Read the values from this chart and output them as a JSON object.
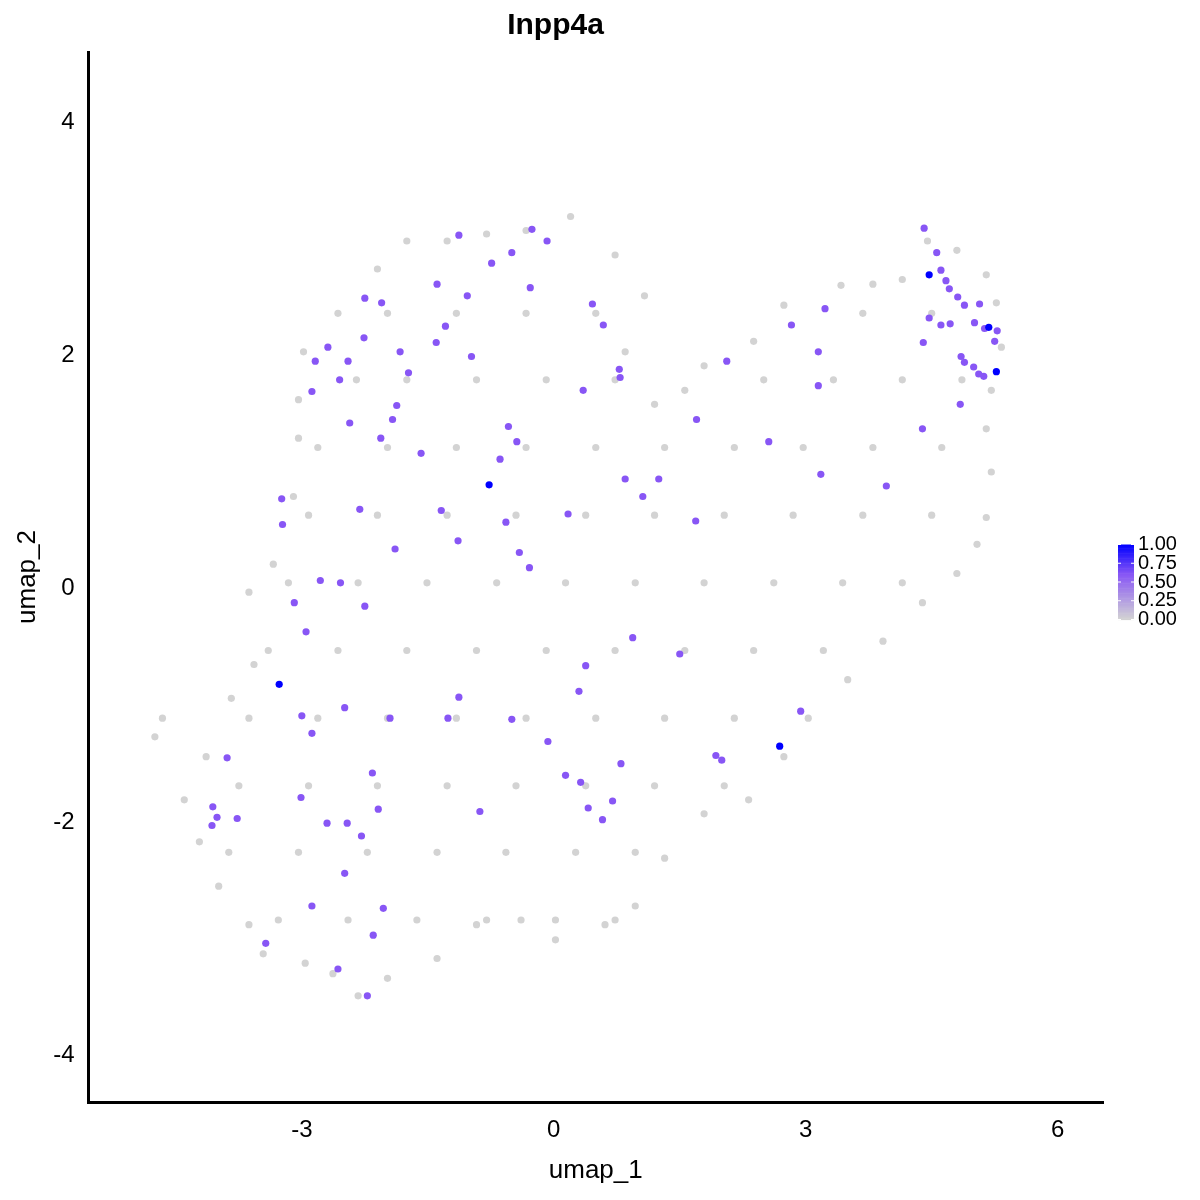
{
  "chart_data": {
    "type": "scatter",
    "title": "Inpp4a",
    "xlabel": "umap_1",
    "ylabel": "umap_2",
    "xlim": [
      -5.54,
      6.54
    ],
    "xticks": [
      -3,
      0,
      3,
      6
    ],
    "ylim": [
      -4.4,
      4.6
    ],
    "yticks": [
      -4,
      -2,
      0,
      2,
      4
    ],
    "grid": false,
    "marker": "circle",
    "clim": [
      0,
      1
    ],
    "cticks": [
      {
        "value": 0,
        "label": "0.00"
      },
      {
        "value": 0.25,
        "label": "0.25"
      },
      {
        "value": 0.5,
        "label": "0.50"
      },
      {
        "value": 0.75,
        "label": "0.75"
      },
      {
        "value": 1,
        "label": "1.00"
      }
    ],
    "series": [
      {
        "x": [
          -4.75,
          -4.66,
          -4.4,
          -4.22,
          -3.99,
          -3.63,
          -3.46,
          -2.96,
          -2.63,
          -2.33,
          -1.98,
          -1.39,
          -0.92,
          -0.39,
          0.02,
          0.61,
          0.97,
          1.32,
          1.79,
          2.32,
          2.74,
          3.03,
          3.5,
          3.92,
          4.39,
          4.8,
          5.04,
          5.15,
          5.21,
          5.15,
          5.21,
          5.33,
          5.27,
          5.15,
          4.8,
          4.45,
          4.15,
          3.8,
          3.42,
          2.74,
          2.38,
          1.79,
          1.56,
          1.2,
          0.85,
          1.08,
          0.73,
          0.2,
          -0.33,
          -0.8,
          -1.27,
          -1.75,
          -2.1,
          -2.57,
          -2.98,
          -3.04,
          -3.04,
          -3.1,
          -3.34,
          -3.63,
          -3.57,
          -3.84,
          -4.14,
          -1.98,
          -1.16,
          -0.33,
          0.5,
          3.68,
          4.5,
          -2.35,
          -1.75,
          -0.92,
          -0.09,
          0.73,
          2.5,
          3.33,
          4.15,
          4.86,
          -2.81,
          -1.98,
          -1.16,
          -0.33,
          0.5,
          1.32,
          2.15,
          2.97,
          3.8,
          4.62,
          -2.92,
          -2.1,
          -1.27,
          -0.45,
          0.38,
          1.2,
          2.03,
          2.85,
          3.68,
          4.5,
          -3.16,
          -2.33,
          -1.51,
          -0.68,
          0.14,
          0.97,
          1.79,
          2.62,
          3.44,
          4.15,
          -3.4,
          -2.57,
          -1.75,
          -0.92,
          -0.09,
          0.73,
          1.56,
          2.38,
          3.21,
          -3.63,
          -2.81,
          -1.98,
          -1.16,
          -0.33,
          0.5,
          1.32,
          2.15,
          -3.75,
          -2.92,
          -2.1,
          -1.27,
          -0.45,
          0.38,
          1.2,
          2.03,
          -3.87,
          -3.04,
          -2.22,
          -1.39,
          -0.57,
          0.26,
          0.97,
          -3.28,
          -2.45,
          -1.63,
          -0.8,
          0.02,
          0.73,
          -0.26,
          -0.08,
          -1.13,
          -0.74,
          -0.5,
          -1.39,
          -1.03,
          -0.28,
          -2.25,
          -2.05,
          -1.29,
          -2.26,
          -2.69,
          -2.84,
          -2.45,
          -1.83,
          -1.4,
          -0.98,
          -2.88,
          -2.55,
          -1.73,
          -1.87,
          -1.92,
          -2.43,
          -2.06,
          -1.58,
          -0.64,
          -0.44,
          -0.54,
          -3.24,
          -3.23,
          -2.31,
          -1.34,
          -0.57,
          -1.89,
          -1.14,
          -0.41,
          -0.29,
          -2.78,
          -2.54,
          -3.09,
          -2.95,
          -2.25,
          0.17,
          0.35,
          0.46,
          0.59,
          0.78,
          0.79,
          1.7,
          1.69,
          1.06,
          1.25,
          0.85,
          2.06,
          2.56,
          2.83,
          3.23,
          3.15,
          3.15,
          3.18,
          3.96,
          0.94,
          1.5,
          0.38,
          0.3,
          -0.5,
          -0.07,
          -1.26,
          -1.13,
          -1.95,
          -2.49,
          -2.88,
          -3.0,
          -3.01,
          -2.7,
          -2.46,
          -2.29,
          -2.16,
          -2.09,
          -2.49,
          -2.88,
          -3.43,
          -2.57,
          -2.22,
          -2.15,
          -2.03,
          -4.07,
          -4.01,
          -4.06,
          -3.89,
          -3.77,
          0.14,
          0.32,
          0.41,
          0.58,
          0.7,
          0.8,
          -0.88,
          1.93,
          2.0,
          2.94,
          4.41,
          4.56,
          4.61,
          4.67,
          4.71,
          4.81,
          4.89,
          4.47,
          4.61,
          4.72,
          5.07,
          5.01,
          4.85,
          4.89,
          5.25,
          5.28,
          5.13,
          5.0,
          5.06,
          5.12,
          4.4,
          4.39,
          4.84,
          4.47,
          5.18,
          5.27,
          -0.77,
          -3.27,
          2.69
        ],
        "values": [
          -1.27,
          -1.11,
          -1.81,
          -2.17,
          -2.55,
          -2.88,
          -3.13,
          -3.21,
          -3.3,
          -3.49,
          -3.34,
          -3.17,
          -2.88,
          -2.84,
          -3.01,
          -2.88,
          -2.72,
          -2.31,
          -1.93,
          -1.81,
          -1.44,
          -1.11,
          -0.78,
          -0.45,
          -0.12,
          0.13,
          0.38,
          0.61,
          1.0,
          1.37,
          1.7,
          2.07,
          2.45,
          2.69,
          2.9,
          2.98,
          2.65,
          2.61,
          2.6,
          2.43,
          2.12,
          1.91,
          1.7,
          1.58,
          2.03,
          2.51,
          2.86,
          3.19,
          3.07,
          3.04,
          2.98,
          2.98,
          2.74,
          2.36,
          2.03,
          1.62,
          1.29,
          0.79,
          0.21,
          -0.03,
          -0.65,
          -0.94,
          -1.44,
          2.36,
          2.36,
          2.36,
          2.36,
          2.36,
          2.36,
          1.79,
          1.79,
          1.79,
          1.79,
          1.79,
          1.79,
          1.79,
          1.79,
          1.79,
          1.21,
          1.21,
          1.21,
          1.21,
          1.21,
          1.21,
          1.21,
          1.21,
          1.21,
          1.21,
          0.63,
          0.63,
          0.63,
          0.63,
          0.63,
          0.63,
          0.63,
          0.63,
          0.63,
          0.63,
          0.05,
          0.05,
          0.05,
          0.05,
          0.05,
          0.05,
          0.05,
          0.05,
          0.05,
          0.05,
          -0.53,
          -0.53,
          -0.53,
          -0.53,
          -0.53,
          -0.53,
          -0.53,
          -0.53,
          -0.53,
          -1.11,
          -1.11,
          -1.11,
          -1.11,
          -1.11,
          -1.11,
          -1.11,
          -1.11,
          -1.69,
          -1.69,
          -1.69,
          -1.69,
          -1.69,
          -1.69,
          -1.69,
          -1.69,
          -2.26,
          -2.26,
          -2.26,
          -2.26,
          -2.26,
          -2.26,
          -2.26,
          -2.84,
          -2.84,
          -2.84,
          -2.84,
          -2.84,
          -2.84,
          3.08,
          2.98,
          3.03,
          2.79,
          2.88,
          2.61,
          2.51,
          2.58,
          2.49,
          2.45,
          2.25,
          2.15,
          2.07,
          1.95,
          1.95,
          2.03,
          2.11,
          1.99,
          1.69,
          1.79,
          1.85,
          1.57,
          1.45,
          1.42,
          1.29,
          1.16,
          1.11,
          1.26,
          1.39,
          0.77,
          0.55,
          0.68,
          0.67,
          0.57,
          0.34,
          0.41,
          0.31,
          0.18,
          0.07,
          0.05,
          -0.12,
          -0.37,
          -0.15,
          0.64,
          1.7,
          2.44,
          2.26,
          1.88,
          1.81,
          1.45,
          0.58,
          0.79,
          0.94,
          0.94,
          1.95,
          1.26,
          2.26,
          2.4,
          2.03,
          1.74,
          0.98,
          0.88,
          -0.42,
          -0.56,
          -0.66,
          -0.88,
          -1.12,
          -1.31,
          -1.11,
          -0.93,
          -1.11,
          -1.02,
          -1.24,
          -1.09,
          -1.79,
          -2.01,
          -2.01,
          -2.12,
          -1.58,
          -1.89,
          -2.44,
          -2.72,
          -3.04,
          -3.26,
          -3.49,
          -2.97,
          -2.74,
          -2.03,
          -1.96,
          -1.87,
          -1.45,
          -1.97,
          -1.6,
          -1.66,
          -1.88,
          -1.98,
          -1.82,
          -1.5,
          -1.91,
          -1.43,
          -1.47,
          -1.05,
          3.09,
          2.88,
          2.73,
          2.64,
          2.57,
          2.5,
          2.43,
          2.32,
          2.26,
          2.27,
          2.44,
          2.28,
          1.99,
          1.94,
          2.12,
          2.21,
          2.23,
          1.9,
          1.84,
          1.82,
          2.11,
          1.37,
          1.58,
          2.69,
          2.24,
          1.86,
          0.89,
          -0.82,
          -1.35
        ],
        "cvalues": [
          0,
          0,
          0,
          0,
          0,
          0,
          0,
          0,
          0,
          0,
          0,
          0,
          0,
          0,
          0,
          0,
          0,
          0,
          0,
          0,
          0,
          0,
          0,
          0,
          0,
          0,
          0,
          0,
          0,
          0,
          0,
          0,
          0,
          0,
          0,
          0,
          0,
          0,
          0,
          0,
          0,
          0,
          0,
          0,
          0,
          0,
          0,
          0,
          0,
          0,
          0,
          0,
          0,
          0,
          0,
          0,
          0,
          0,
          0,
          0,
          0,
          0,
          0,
          0,
          0,
          0,
          0,
          0,
          0,
          0,
          0,
          0,
          0,
          0,
          0,
          0,
          0,
          0,
          0,
          0,
          0,
          0,
          0,
          0,
          0,
          0,
          0,
          0,
          0,
          0,
          0,
          0,
          0,
          0,
          0,
          0,
          0,
          0,
          0,
          0,
          0,
          0,
          0,
          0,
          0,
          0,
          0,
          0,
          0,
          0,
          0,
          0,
          0,
          0,
          0,
          0,
          0,
          0,
          0,
          0,
          0,
          0,
          0,
          0,
          0,
          0,
          0,
          0,
          0,
          0,
          0,
          0,
          0,
          0,
          0,
          0,
          0,
          0,
          0,
          0,
          0,
          0,
          0,
          0,
          0,
          0,
          0.6,
          0.6,
          0.6,
          0.6,
          0.6,
          0.6,
          0.6,
          0.6,
          0.6,
          0.6,
          0.6,
          0.6,
          0.6,
          0.6,
          0.6,
          0.6,
          0.6,
          0.6,
          0.6,
          0.6,
          0.6,
          0.6,
          0.6,
          0.6,
          0.6,
          0.6,
          0.6,
          0.6,
          0.6,
          0.6,
          0.6,
          0.6,
          0.6,
          0.6,
          0.6,
          0.6,
          0.6,
          0.6,
          0.6,
          0.6,
          0.6,
          0.6,
          0.6,
          0.6,
          0.6,
          0.6,
          0.6,
          0.6,
          0.6,
          0.6,
          0.6,
          0.6,
          0.6,
          0.6,
          0.6,
          0.6,
          0.6,
          0.6,
          0.6,
          0.6,
          0.6,
          0.6,
          0.6,
          0.6,
          0.6,
          0.6,
          0.6,
          0.6,
          0.6,
          0.6,
          0.6,
          0.6,
          0.6,
          0.6,
          0.6,
          0.6,
          0.6,
          0.6,
          0.6,
          0.6,
          0.6,
          0.6,
          0.6,
          0.6,
          0.6,
          0.6,
          0.6,
          0.6,
          0.6,
          0.6,
          0.6,
          0.6,
          0.6,
          0.6,
          0.6,
          0.6,
          0.6,
          0.6,
          0.6,
          0.6,
          0.6,
          0.6,
          0.6,
          0.6,
          0.6,
          0.6,
          0.6,
          0.6,
          0.6,
          0.6,
          0.6,
          0.6,
          0.6,
          0.6,
          0.6,
          0.6,
          0.6,
          0.6,
          0.6,
          0.6,
          0.6,
          0.6,
          0.6,
          0.6,
          0.6,
          1,
          1,
          1,
          1,
          1,
          1
        ]
      }
    ]
  }
}
